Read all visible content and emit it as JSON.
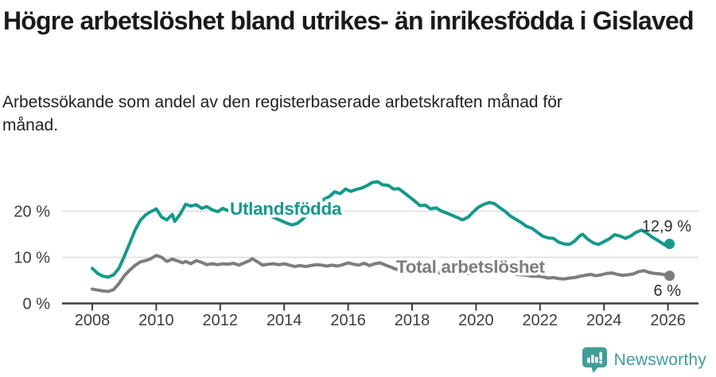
{
  "header": {
    "title": "Högre arbetslöshet bland utrikes- än inrikesfödda i Gislaved",
    "subtitle": "Arbetssökande som andel av den registerbaserade arbetskraften månad för månad."
  },
  "colors": {
    "foreign_born_line": "#14998c",
    "total_line": "#7d7d7d",
    "grid": "#dcdcdc",
    "axis": "#3d3d3d",
    "tick_text": "#3d3d3d",
    "end_label_text": "#2e2e2e",
    "brand_teal": "#3f9e98"
  },
  "chart_data": {
    "type": "line",
    "title": "Högre arbetslöshet bland utrikes- än inrikesfödda i Gislaved",
    "subtitle": "Arbetssökande som andel av den registerbaserade arbetskraften månad för månad.",
    "xlabel": "",
    "ylabel": "",
    "xlim": [
      2007.1,
      2027
    ],
    "ylim": [
      0,
      28
    ],
    "grid": "horizontal",
    "legend_position": "inline",
    "yticks": [
      {
        "value": 0,
        "label": "0 %"
      },
      {
        "value": 10,
        "label": "10 %"
      },
      {
        "value": 20,
        "label": "20 %"
      }
    ],
    "xticks": [
      {
        "value": 2008,
        "label": "2008"
      },
      {
        "value": 2010,
        "label": "2010"
      },
      {
        "value": 2012,
        "label": "2012"
      },
      {
        "value": 2014,
        "label": "2014"
      },
      {
        "value": 2016,
        "label": "2016"
      },
      {
        "value": 2018,
        "label": "2018"
      },
      {
        "value": 2020,
        "label": "2020"
      },
      {
        "value": 2022,
        "label": "2022"
      },
      {
        "value": 2024,
        "label": "2024"
      },
      {
        "value": 2026,
        "label": "2026"
      }
    ],
    "series": [
      {
        "name": "Utlandsfödda",
        "color": "#14998c",
        "end_label": "12,9 %",
        "end_value": 12.9,
        "points": [
          [
            2008.0,
            7.6
          ],
          [
            2008.17,
            6.5
          ],
          [
            2008.33,
            5.9
          ],
          [
            2008.5,
            5.7
          ],
          [
            2008.67,
            6.2
          ],
          [
            2008.83,
            7.6
          ],
          [
            2009.0,
            10.2
          ],
          [
            2009.17,
            13.0
          ],
          [
            2009.33,
            15.8
          ],
          [
            2009.5,
            18.0
          ],
          [
            2009.67,
            19.2
          ],
          [
            2009.83,
            19.9
          ],
          [
            2010.0,
            20.5
          ],
          [
            2010.17,
            18.7
          ],
          [
            2010.33,
            18.1
          ],
          [
            2010.5,
            19.3
          ],
          [
            2010.58,
            17.8
          ],
          [
            2010.75,
            19.4
          ],
          [
            2010.92,
            21.5
          ],
          [
            2011.08,
            21.1
          ],
          [
            2011.25,
            21.4
          ],
          [
            2011.42,
            20.6
          ],
          [
            2011.58,
            21.0
          ],
          [
            2011.75,
            20.3
          ],
          [
            2011.92,
            19.9
          ],
          [
            2012.08,
            20.6
          ],
          [
            2012.25,
            20.1
          ],
          [
            2012.42,
            20.5
          ],
          [
            2012.58,
            20.2
          ],
          [
            2012.75,
            20.8
          ],
          [
            2012.92,
            20.4
          ],
          [
            2013.08,
            20.3
          ],
          [
            2013.25,
            20.5
          ],
          [
            2013.42,
            19.7
          ],
          [
            2013.58,
            19.0
          ],
          [
            2013.75,
            18.4
          ],
          [
            2013.92,
            17.9
          ],
          [
            2014.08,
            17.4
          ],
          [
            2014.25,
            17.0
          ],
          [
            2014.42,
            17.4
          ],
          [
            2014.58,
            18.3
          ],
          [
            2014.75,
            19.4
          ],
          [
            2014.92,
            20.5
          ],
          [
            2015.08,
            21.7
          ],
          [
            2015.25,
            22.6
          ],
          [
            2015.42,
            23.2
          ],
          [
            2015.58,
            24.2
          ],
          [
            2015.75,
            23.8
          ],
          [
            2015.92,
            24.8
          ],
          [
            2016.08,
            24.3
          ],
          [
            2016.25,
            24.7
          ],
          [
            2016.42,
            25.0
          ],
          [
            2016.58,
            25.5
          ],
          [
            2016.75,
            26.2
          ],
          [
            2016.92,
            26.4
          ],
          [
            2017.08,
            25.7
          ],
          [
            2017.25,
            25.6
          ],
          [
            2017.42,
            24.8
          ],
          [
            2017.58,
            24.9
          ],
          [
            2017.75,
            24.0
          ],
          [
            2017.92,
            23.1
          ],
          [
            2018.08,
            22.2
          ],
          [
            2018.25,
            21.2
          ],
          [
            2018.42,
            21.3
          ],
          [
            2018.58,
            20.5
          ],
          [
            2018.75,
            20.7
          ],
          [
            2018.92,
            20.0
          ],
          [
            2019.08,
            19.6
          ],
          [
            2019.25,
            19.1
          ],
          [
            2019.42,
            18.6
          ],
          [
            2019.58,
            18.1
          ],
          [
            2019.75,
            18.7
          ],
          [
            2019.92,
            19.9
          ],
          [
            2020.08,
            20.9
          ],
          [
            2020.25,
            21.5
          ],
          [
            2020.42,
            21.9
          ],
          [
            2020.58,
            21.6
          ],
          [
            2020.75,
            20.7
          ],
          [
            2020.92,
            19.9
          ],
          [
            2021.08,
            18.9
          ],
          [
            2021.25,
            18.2
          ],
          [
            2021.42,
            17.5
          ],
          [
            2021.58,
            16.7
          ],
          [
            2021.75,
            16.3
          ],
          [
            2021.92,
            15.4
          ],
          [
            2022.08,
            14.6
          ],
          [
            2022.25,
            14.2
          ],
          [
            2022.42,
            14.1
          ],
          [
            2022.58,
            13.3
          ],
          [
            2022.75,
            12.9
          ],
          [
            2022.92,
            12.8
          ],
          [
            2023.08,
            13.5
          ],
          [
            2023.25,
            14.7
          ],
          [
            2023.33,
            15.0
          ],
          [
            2023.5,
            13.9
          ],
          [
            2023.67,
            13.1
          ],
          [
            2023.83,
            12.8
          ],
          [
            2024.0,
            13.4
          ],
          [
            2024.17,
            14.0
          ],
          [
            2024.33,
            14.9
          ],
          [
            2024.5,
            14.6
          ],
          [
            2024.67,
            14.1
          ],
          [
            2024.83,
            14.6
          ],
          [
            2025.0,
            15.4
          ],
          [
            2025.17,
            15.9
          ],
          [
            2025.33,
            15.3
          ],
          [
            2025.5,
            14.4
          ],
          [
            2025.67,
            13.7
          ],
          [
            2025.83,
            13.0
          ],
          [
            2025.92,
            12.6
          ],
          [
            2026.05,
            12.9
          ]
        ]
      },
      {
        "name": "Total arbetslöshet",
        "color": "#7d7d7d",
        "end_label": "6 %",
        "end_value": 6.0,
        "points": [
          [
            2008.0,
            3.1
          ],
          [
            2008.17,
            2.9
          ],
          [
            2008.33,
            2.7
          ],
          [
            2008.5,
            2.6
          ],
          [
            2008.67,
            3.0
          ],
          [
            2008.83,
            4.3
          ],
          [
            2009.0,
            6.0
          ],
          [
            2009.17,
            7.2
          ],
          [
            2009.33,
            8.2
          ],
          [
            2009.5,
            9.0
          ],
          [
            2009.67,
            9.3
          ],
          [
            2009.83,
            9.7
          ],
          [
            2010.0,
            10.4
          ],
          [
            2010.17,
            10.0
          ],
          [
            2010.33,
            9.1
          ],
          [
            2010.5,
            9.6
          ],
          [
            2010.67,
            9.2
          ],
          [
            2010.83,
            8.8
          ],
          [
            2010.92,
            9.1
          ],
          [
            2011.08,
            8.6
          ],
          [
            2011.25,
            9.3
          ],
          [
            2011.42,
            8.9
          ],
          [
            2011.58,
            8.4
          ],
          [
            2011.75,
            8.6
          ],
          [
            2011.92,
            8.4
          ],
          [
            2012.08,
            8.6
          ],
          [
            2012.25,
            8.5
          ],
          [
            2012.42,
            8.7
          ],
          [
            2012.58,
            8.3
          ],
          [
            2012.75,
            8.8
          ],
          [
            2012.92,
            9.3
          ],
          [
            2013.0,
            9.7
          ],
          [
            2013.17,
            9.0
          ],
          [
            2013.33,
            8.3
          ],
          [
            2013.5,
            8.5
          ],
          [
            2013.67,
            8.6
          ],
          [
            2013.83,
            8.4
          ],
          [
            2014.0,
            8.6
          ],
          [
            2014.17,
            8.3
          ],
          [
            2014.33,
            8.0
          ],
          [
            2014.5,
            8.2
          ],
          [
            2014.67,
            8.0
          ],
          [
            2014.83,
            8.2
          ],
          [
            2015.0,
            8.4
          ],
          [
            2015.17,
            8.3
          ],
          [
            2015.33,
            8.1
          ],
          [
            2015.5,
            8.3
          ],
          [
            2015.67,
            8.1
          ],
          [
            2015.83,
            8.4
          ],
          [
            2016.0,
            8.8
          ],
          [
            2016.17,
            8.5
          ],
          [
            2016.33,
            8.3
          ],
          [
            2016.5,
            8.7
          ],
          [
            2016.67,
            8.2
          ],
          [
            2016.83,
            8.6
          ],
          [
            2017.0,
            8.8
          ],
          [
            2017.17,
            8.3
          ],
          [
            2017.33,
            7.9
          ],
          [
            2017.5,
            7.4
          ],
          [
            2017.67,
            7.6
          ],
          [
            2017.83,
            7.3
          ],
          [
            2018.0,
            7.1
          ],
          [
            2018.25,
            7.0
          ],
          [
            2018.5,
            6.8
          ],
          [
            2018.75,
            6.7
          ],
          [
            2019.0,
            6.6
          ],
          [
            2019.25,
            6.5
          ],
          [
            2019.5,
            6.4
          ],
          [
            2019.75,
            6.5
          ],
          [
            2020.0,
            6.8
          ],
          [
            2020.25,
            7.4
          ],
          [
            2020.42,
            7.6
          ],
          [
            2020.58,
            7.4
          ],
          [
            2020.75,
            7.1
          ],
          [
            2020.92,
            6.9
          ],
          [
            2021.08,
            6.6
          ],
          [
            2021.25,
            6.3
          ],
          [
            2021.42,
            6.2
          ],
          [
            2021.58,
            6.1
          ],
          [
            2021.75,
            5.9
          ],
          [
            2021.92,
            5.9
          ],
          [
            2022.08,
            5.8
          ],
          [
            2022.25,
            5.5
          ],
          [
            2022.42,
            5.6
          ],
          [
            2022.58,
            5.4
          ],
          [
            2022.75,
            5.3
          ],
          [
            2022.92,
            5.5
          ],
          [
            2023.08,
            5.6
          ],
          [
            2023.25,
            5.9
          ],
          [
            2023.42,
            6.1
          ],
          [
            2023.58,
            6.3
          ],
          [
            2023.75,
            6.0
          ],
          [
            2023.92,
            6.2
          ],
          [
            2024.08,
            6.5
          ],
          [
            2024.25,
            6.6
          ],
          [
            2024.42,
            6.3
          ],
          [
            2024.58,
            6.1
          ],
          [
            2024.75,
            6.2
          ],
          [
            2024.92,
            6.4
          ],
          [
            2025.08,
            6.9
          ],
          [
            2025.25,
            7.1
          ],
          [
            2025.42,
            6.7
          ],
          [
            2025.58,
            6.5
          ],
          [
            2025.75,
            6.4
          ],
          [
            2025.92,
            6.2
          ],
          [
            2026.05,
            6.0
          ]
        ]
      }
    ]
  },
  "footer": {
    "brand": "Newsworthy"
  }
}
